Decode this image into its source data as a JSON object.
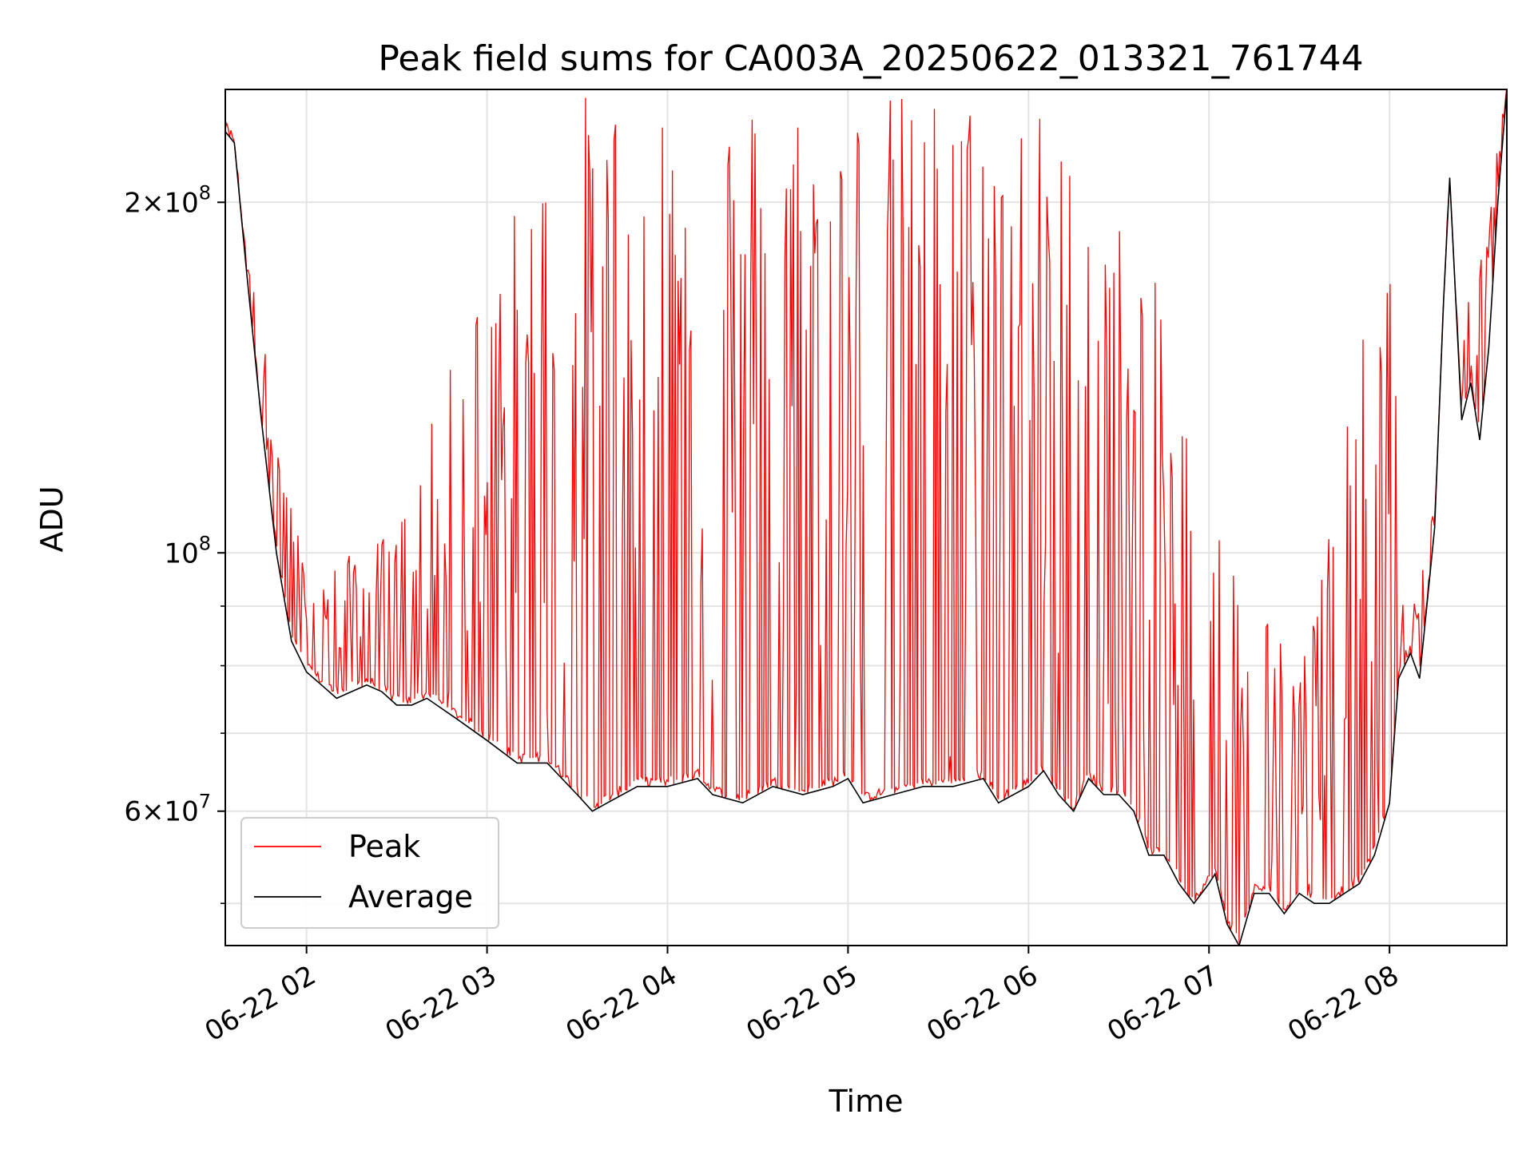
{
  "chart_data": {
    "type": "line",
    "title": "Peak field sums for CA003A_20250622_013321_761744",
    "xlabel": "Time",
    "ylabel": "ADU",
    "yscale": "log",
    "ylim": [
      46000000,
      250000000
    ],
    "xlim": [
      "06-22 01:33",
      "06-22 08:39"
    ],
    "grid": true,
    "legend_position": "lower-left",
    "x_ticks": [
      {
        "time": "06-22 02:00",
        "label": "06-22 02"
      },
      {
        "time": "06-22 03:00",
        "label": "06-22 03"
      },
      {
        "time": "06-22 04:00",
        "label": "06-22 04"
      },
      {
        "time": "06-22 05:00",
        "label": "06-22 05"
      },
      {
        "time": "06-22 06:00",
        "label": "06-22 06"
      },
      {
        "time": "06-22 07:00",
        "label": "06-22 07"
      },
      {
        "time": "06-22 08:00",
        "label": "06-22 08"
      }
    ],
    "y_major_ticks": [
      {
        "value": 60000000,
        "base": "6",
        "exp": "7"
      },
      {
        "value": 100000000,
        "base": "",
        "exp": "8"
      },
      {
        "value": 200000000,
        "base": "2",
        "exp": "8"
      }
    ],
    "y_minor_ticks": [
      50000000,
      70000000,
      80000000,
      90000000
    ],
    "series": [
      {
        "name": "Average",
        "color": "#000000",
        "x": [
          "06-22 01:33",
          "06-22 01:36",
          "06-22 01:40",
          "06-22 01:45",
          "06-22 01:50",
          "06-22 01:55",
          "06-22 02:00",
          "06-22 02:05",
          "06-22 02:10",
          "06-22 02:15",
          "06-22 02:20",
          "06-22 02:25",
          "06-22 02:30",
          "06-22 02:35",
          "06-22 02:40",
          "06-22 02:50",
          "06-22 03:00",
          "06-22 03:10",
          "06-22 03:20",
          "06-22 03:30",
          "06-22 03:35",
          "06-22 03:40",
          "06-22 03:50",
          "06-22 04:00",
          "06-22 04:10",
          "06-22 04:15",
          "06-22 04:25",
          "06-22 04:35",
          "06-22 04:45",
          "06-22 04:55",
          "06-22 05:00",
          "06-22 05:05",
          "06-22 05:15",
          "06-22 05:25",
          "06-22 05:35",
          "06-22 05:45",
          "06-22 05:50",
          "06-22 05:55",
          "06-22 06:00",
          "06-22 06:05",
          "06-22 06:10",
          "06-22 06:15",
          "06-22 06:20",
          "06-22 06:25",
          "06-22 06:30",
          "06-22 06:35",
          "06-22 06:40",
          "06-22 06:45",
          "06-22 06:50",
          "06-22 06:55",
          "06-22 07:00",
          "06-22 07:02",
          "06-22 07:06",
          "06-22 07:10",
          "06-22 07:15",
          "06-22 07:20",
          "06-22 07:25",
          "06-22 07:30",
          "06-22 07:35",
          "06-22 07:40",
          "06-22 07:45",
          "06-22 07:50",
          "06-22 07:55",
          "06-22 08:00",
          "06-22 08:03",
          "06-22 08:07",
          "06-22 08:10",
          "06-22 08:15",
          "06-22 08:18",
          "06-22 08:20",
          "06-22 08:24",
          "06-22 08:27",
          "06-22 08:30",
          "06-22 08:33",
          "06-22 08:36",
          "06-22 08:39"
        ],
        "values": [
          230000000,
          225000000,
          175000000,
          130000000,
          100000000,
          84000000,
          79000000,
          77000000,
          75000000,
          76000000,
          77000000,
          76000000,
          74000000,
          74000000,
          75000000,
          72000000,
          69000000,
          66000000,
          66000000,
          62000000,
          60000000,
          61000000,
          63000000,
          63000000,
          64000000,
          62000000,
          61000000,
          63000000,
          62000000,
          63000000,
          64000000,
          61000000,
          62000000,
          63000000,
          63000000,
          64000000,
          61000000,
          62000000,
          63000000,
          65000000,
          62000000,
          60000000,
          64000000,
          62000000,
          62000000,
          60000000,
          55000000,
          55000000,
          52000000,
          50000000,
          52000000,
          53000000,
          48000000,
          46000000,
          51000000,
          51000000,
          49000000,
          51000000,
          50000000,
          50000000,
          51000000,
          52000000,
          55000000,
          61000000,
          78000000,
          82000000,
          78000000,
          105000000,
          165000000,
          210000000,
          130000000,
          140000000,
          125000000,
          150000000,
          200000000,
          250000000
        ]
      },
      {
        "name": "Peak",
        "color": "#ff0000",
        "x_start": "06-22 01:33",
        "x_end": "06-22 08:39",
        "spike_count": 900,
        "envelope": [
          {
            "time": "06-22 01:33",
            "max": 230000000
          },
          {
            "time": "06-22 02:00",
            "max": 95000000
          },
          {
            "time": "06-22 02:30",
            "max": 105000000
          },
          {
            "time": "06-22 03:00",
            "max": 180000000
          },
          {
            "time": "06-22 03:30",
            "max": 250000000
          },
          {
            "time": "06-22 04:00",
            "max": 250000000
          },
          {
            "time": "06-22 05:00",
            "max": 250000000
          },
          {
            "time": "06-22 06:00",
            "max": 250000000
          },
          {
            "time": "06-22 06:40",
            "max": 180000000
          },
          {
            "time": "06-22 07:00",
            "max": 110000000
          },
          {
            "time": "06-22 07:30",
            "max": 80000000
          },
          {
            "time": "06-22 08:00",
            "max": 200000000
          },
          {
            "time": "06-22 08:05",
            "max": 82000000
          },
          {
            "time": "06-22 08:39",
            "max": 250000000
          }
        ]
      }
    ]
  }
}
